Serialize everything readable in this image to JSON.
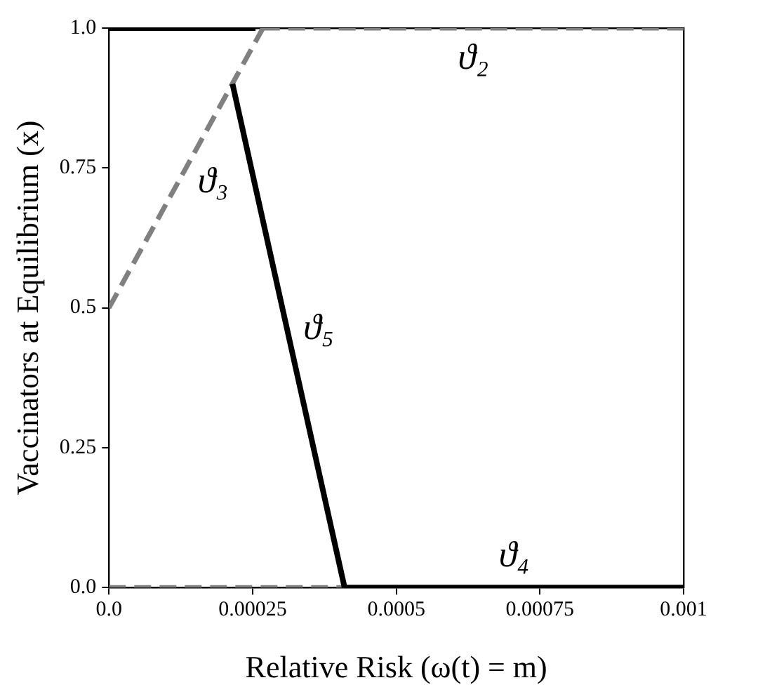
{
  "chart_data": {
    "type": "line",
    "xlabel": "Relative Risk (ω(t) = m)",
    "ylabel": "Vaccinators at Equilibrium (x)",
    "series": [
      {
        "color": "#000000",
        "line_style": "solid",
        "x": [
          0,
          0.000255
        ],
        "values": [
          1,
          1
        ]
      },
      {
        "name": "ϑ₅",
        "color": "#000000",
        "line_style": "solid",
        "x": [
          0.000215,
          0.00041
        ],
        "values": [
          0.9,
          0
        ]
      },
      {
        "name": "ϑ₄",
        "color": "#000000",
        "line_style": "solid",
        "x": [
          0.00041,
          0.001
        ],
        "values": [
          0,
          0
        ]
      },
      {
        "name": "ϑ₃",
        "color": "#808080",
        "line_style": "dashed",
        "x": [
          0,
          0.000268
        ],
        "values": [
          0.5,
          1
        ]
      },
      {
        "name": "ϑ₂",
        "color": "#808080",
        "line_style": "dashed",
        "x": [
          0.000268,
          0.001
        ],
        "values": [
          1,
          1
        ]
      },
      {
        "color": "#808080",
        "line_style": "dashed",
        "x": [
          0,
          0.00041
        ],
        "values": [
          0,
          0
        ]
      }
    ],
    "xlim": [
      0,
      0.001
    ],
    "ylim": [
      0,
      1
    ],
    "xticks": [
      {
        "value": 0,
        "label": "0.0"
      },
      0.00025,
      0.0005,
      0.00075,
      0.001
    ],
    "yticks": [
      {
        "value": 0,
        "label": "0.0"
      },
      0.25,
      {
        "value": 0.5,
        "label": "0.5"
      },
      0.75,
      {
        "value": 1,
        "label": "1.0"
      }
    ],
    "grid": false,
    "legend": false,
    "marker": "none"
  }
}
